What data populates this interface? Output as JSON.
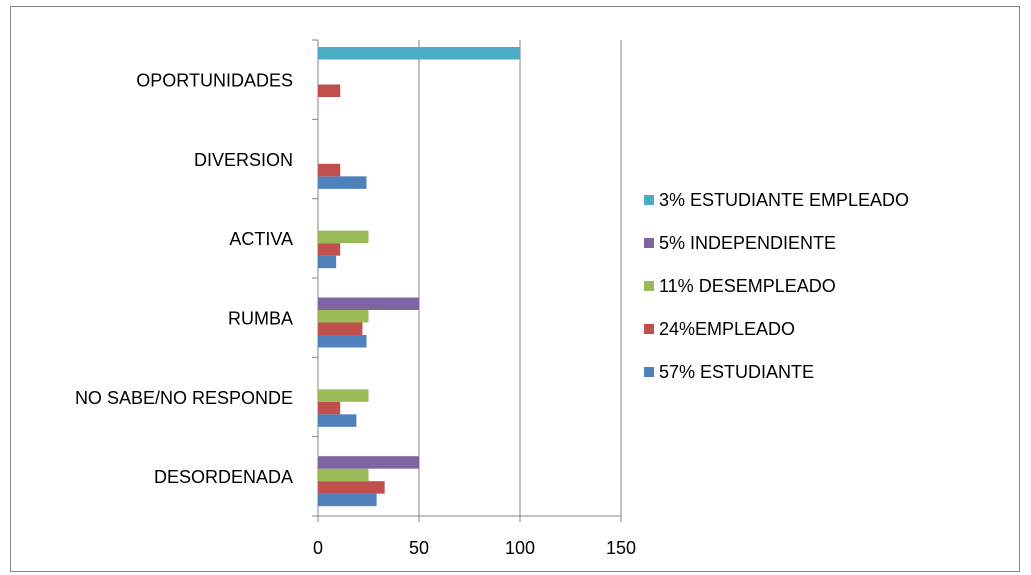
{
  "chart_data": {
    "type": "barh",
    "categories": [
      "DESORDENADA",
      "NO SABE/NO RESPONDE",
      "RUMBA",
      "ACTIVA",
      "DIVERSION",
      "OPORTUNIDADES"
    ],
    "series": [
      {
        "name": "57% ESTUDIANTE",
        "color": "#4f81bd",
        "values": [
          29,
          19,
          24,
          9,
          24,
          0
        ]
      },
      {
        "name": "24%EMPLEADO",
        "color": "#c0504d",
        "values": [
          33,
          11,
          22,
          11,
          11,
          11
        ]
      },
      {
        "name": "11% DESEMPLEADO",
        "color": "#9bbb59",
        "values": [
          25,
          25,
          25,
          25,
          0,
          0
        ]
      },
      {
        "name": "5% INDEPENDIENTE",
        "color": "#8064a2",
        "values": [
          50,
          0,
          50,
          0,
          0,
          0
        ]
      },
      {
        "name": "3% ESTUDIANTE EMPLEADO",
        "color": "#4bacc6",
        "values": [
          0,
          0,
          0,
          0,
          0,
          100
        ]
      }
    ],
    "xlim": [
      0,
      150
    ],
    "xticks": [
      0,
      50,
      100,
      150
    ],
    "grid": true,
    "legend": "right"
  }
}
